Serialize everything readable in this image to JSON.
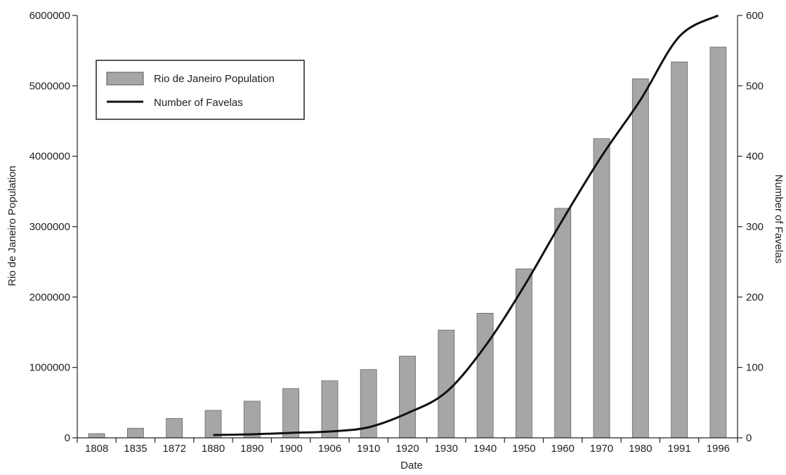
{
  "chart_data": {
    "type": "bar",
    "categories": [
      "1808",
      "1835",
      "1872",
      "1880",
      "1890",
      "1900",
      "1906",
      "1910",
      "1920",
      "1930",
      "1940",
      "1950",
      "1960",
      "1970",
      "1980",
      "1991",
      "1996"
    ],
    "xlabel": "Date",
    "ylabel_left": "Rio de Janeiro Population",
    "ylabel_right": "Number of Favelas",
    "y_left_ticks": [
      "0",
      "1000000",
      "2000000",
      "3000000",
      "4000000",
      "5000000",
      "6000000"
    ],
    "y_right_ticks": [
      "0",
      "100",
      "200",
      "300",
      "400",
      "500",
      "600"
    ],
    "ylim_left": [
      0,
      6000000
    ],
    "ylim_right": [
      0,
      600
    ],
    "series": [
      {
        "name": "Rio de Janeiro Population",
        "type": "bar",
        "axis": "left",
        "color": "#a6a6a6",
        "values": [
          60000,
          137000,
          275000,
          390000,
          520000,
          700000,
          810000,
          970000,
          1160000,
          1530000,
          1770000,
          2400000,
          3260000,
          4250000,
          5100000,
          5340000,
          5550000
        ]
      },
      {
        "name": "Number of Favelas",
        "type": "line",
        "axis": "right",
        "color": "#111111",
        "values": [
          null,
          null,
          null,
          4,
          5,
          7,
          9,
          15,
          35,
          65,
          130,
          215,
          310,
          400,
          480,
          570,
          600
        ]
      }
    ],
    "legend": {
      "position": "top-left",
      "items": [
        "Rio de Janeiro Population",
        "Number of Favelas"
      ]
    },
    "grid": false
  }
}
